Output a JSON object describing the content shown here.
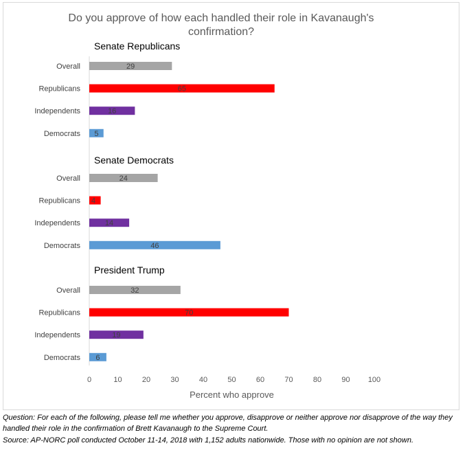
{
  "chart_data": {
    "type": "bar",
    "orientation": "horizontal",
    "title": "Do you approve of how each handled their role in Kavanaugh's confirmation?",
    "xlabel": "Percent who approve",
    "xlim": [
      0,
      100
    ],
    "xticks": [
      "0",
      "10",
      "20",
      "30",
      "40",
      "50",
      "60",
      "70",
      "80",
      "90",
      "100"
    ],
    "grid": false,
    "legend": "none",
    "categories": [
      "Overall",
      "Republicans",
      "Independents",
      "Democrats"
    ],
    "category_colors": {
      "Overall": "#a5a5a5",
      "Republicans": "#ff0000",
      "Independents": "#7030a0",
      "Democrats": "#5b9bd5"
    },
    "groups": [
      {
        "name": "Senate Republicans",
        "values": [
          29,
          65,
          16,
          5
        ]
      },
      {
        "name": "Senate Democrats",
        "values": [
          24,
          4,
          14,
          46
        ]
      },
      {
        "name": "President Trump",
        "values": [
          32,
          70,
          19,
          6
        ]
      }
    ]
  },
  "footnotes": {
    "question": "Question: For each of the following, please tell me whether you approve, disapprove or neither approve nor disapprove of the way they handled their role in the confirmation of Brett Kavanaugh to the Supreme Court.",
    "source": "Source: AP-NORC poll conducted October 11-14, 2018 with 1,152 adults nationwide. Those with no opinion are not shown."
  }
}
